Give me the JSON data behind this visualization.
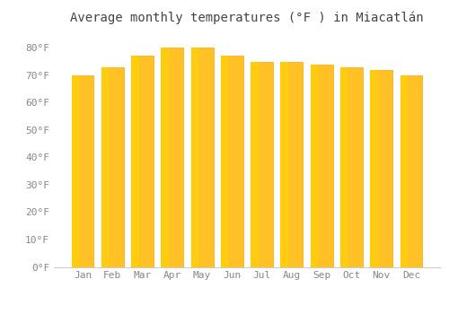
{
  "title": "Average monthly temperatures (°F ) in Miacatlán",
  "months": [
    "Jan",
    "Feb",
    "Mar",
    "Apr",
    "May",
    "Jun",
    "Jul",
    "Aug",
    "Sep",
    "Oct",
    "Nov",
    "Dec"
  ],
  "values": [
    70,
    73,
    77,
    80,
    80,
    77,
    75,
    75,
    74,
    73,
    72,
    70
  ],
  "bar_color_main": "#FFC125",
  "bar_color_highlight": "#FFD700",
  "bar_color_edge": "#FFA500",
  "background_color": "#ffffff",
  "grid_color": "#ffffff",
  "ytick_labels": [
    "0°F",
    "10°F",
    "20°F",
    "30°F",
    "40°F",
    "50°F",
    "60°F",
    "70°F",
    "80°F"
  ],
  "ytick_values": [
    0,
    10,
    20,
    30,
    40,
    50,
    60,
    70,
    80
  ],
  "ylim": [
    0,
    86
  ],
  "title_fontsize": 10,
  "tick_fontsize": 8,
  "font_family": "monospace",
  "tick_color": "#888888",
  "title_color": "#444444"
}
